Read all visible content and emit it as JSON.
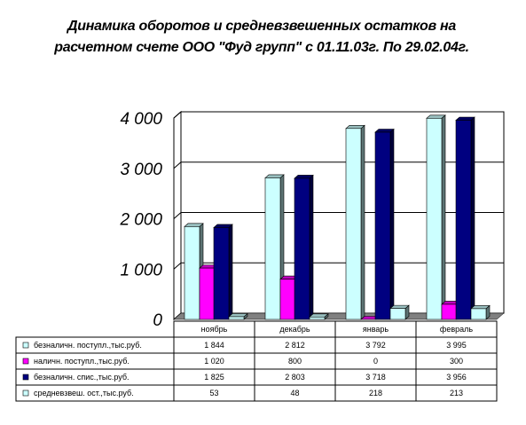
{
  "chart_data": {
    "type": "bar",
    "title": "Динамика оборотов и средневзвешенных остатков на расчетном счете ООО \"Фуд групп\" с 01.11.03г. По 29.02.04г.",
    "categories": [
      "ноябрь",
      "декабрь",
      "январь",
      "февраль"
    ],
    "ylim": [
      0,
      4000
    ],
    "yticks": [
      0,
      1000,
      2000,
      3000,
      4000
    ],
    "ytick_labels": [
      "0",
      "1 000",
      "2 000",
      "3 000",
      "4 000"
    ],
    "grid": true,
    "legend": "data-table",
    "series": [
      {
        "name": "безналичн. поступл.,тыс.руб.",
        "values": [
          1844,
          2812,
          3792,
          3995
        ],
        "labels": [
          "1 844",
          "2 812",
          "3 792",
          "3 995"
        ],
        "color": "#ccffff"
      },
      {
        "name": "наличн. поступл.,тыс.руб.",
        "values": [
          1020,
          800,
          0,
          300
        ],
        "labels": [
          "1 020",
          "800",
          "0",
          "300"
        ],
        "color": "#ff00ff"
      },
      {
        "name": "безналичн. спис.,тыс.руб.",
        "values": [
          1825,
          2803,
          3718,
          3956
        ],
        "labels": [
          "1 825",
          "2 803",
          "3 718",
          "3 956"
        ],
        "color": "#000080"
      },
      {
        "name": "средневзвеш. ост.,тыс.руб.",
        "values": [
          53,
          48,
          218,
          213
        ],
        "labels": [
          "53",
          "48",
          "218",
          "213"
        ],
        "color": "#ccffff"
      }
    ]
  }
}
